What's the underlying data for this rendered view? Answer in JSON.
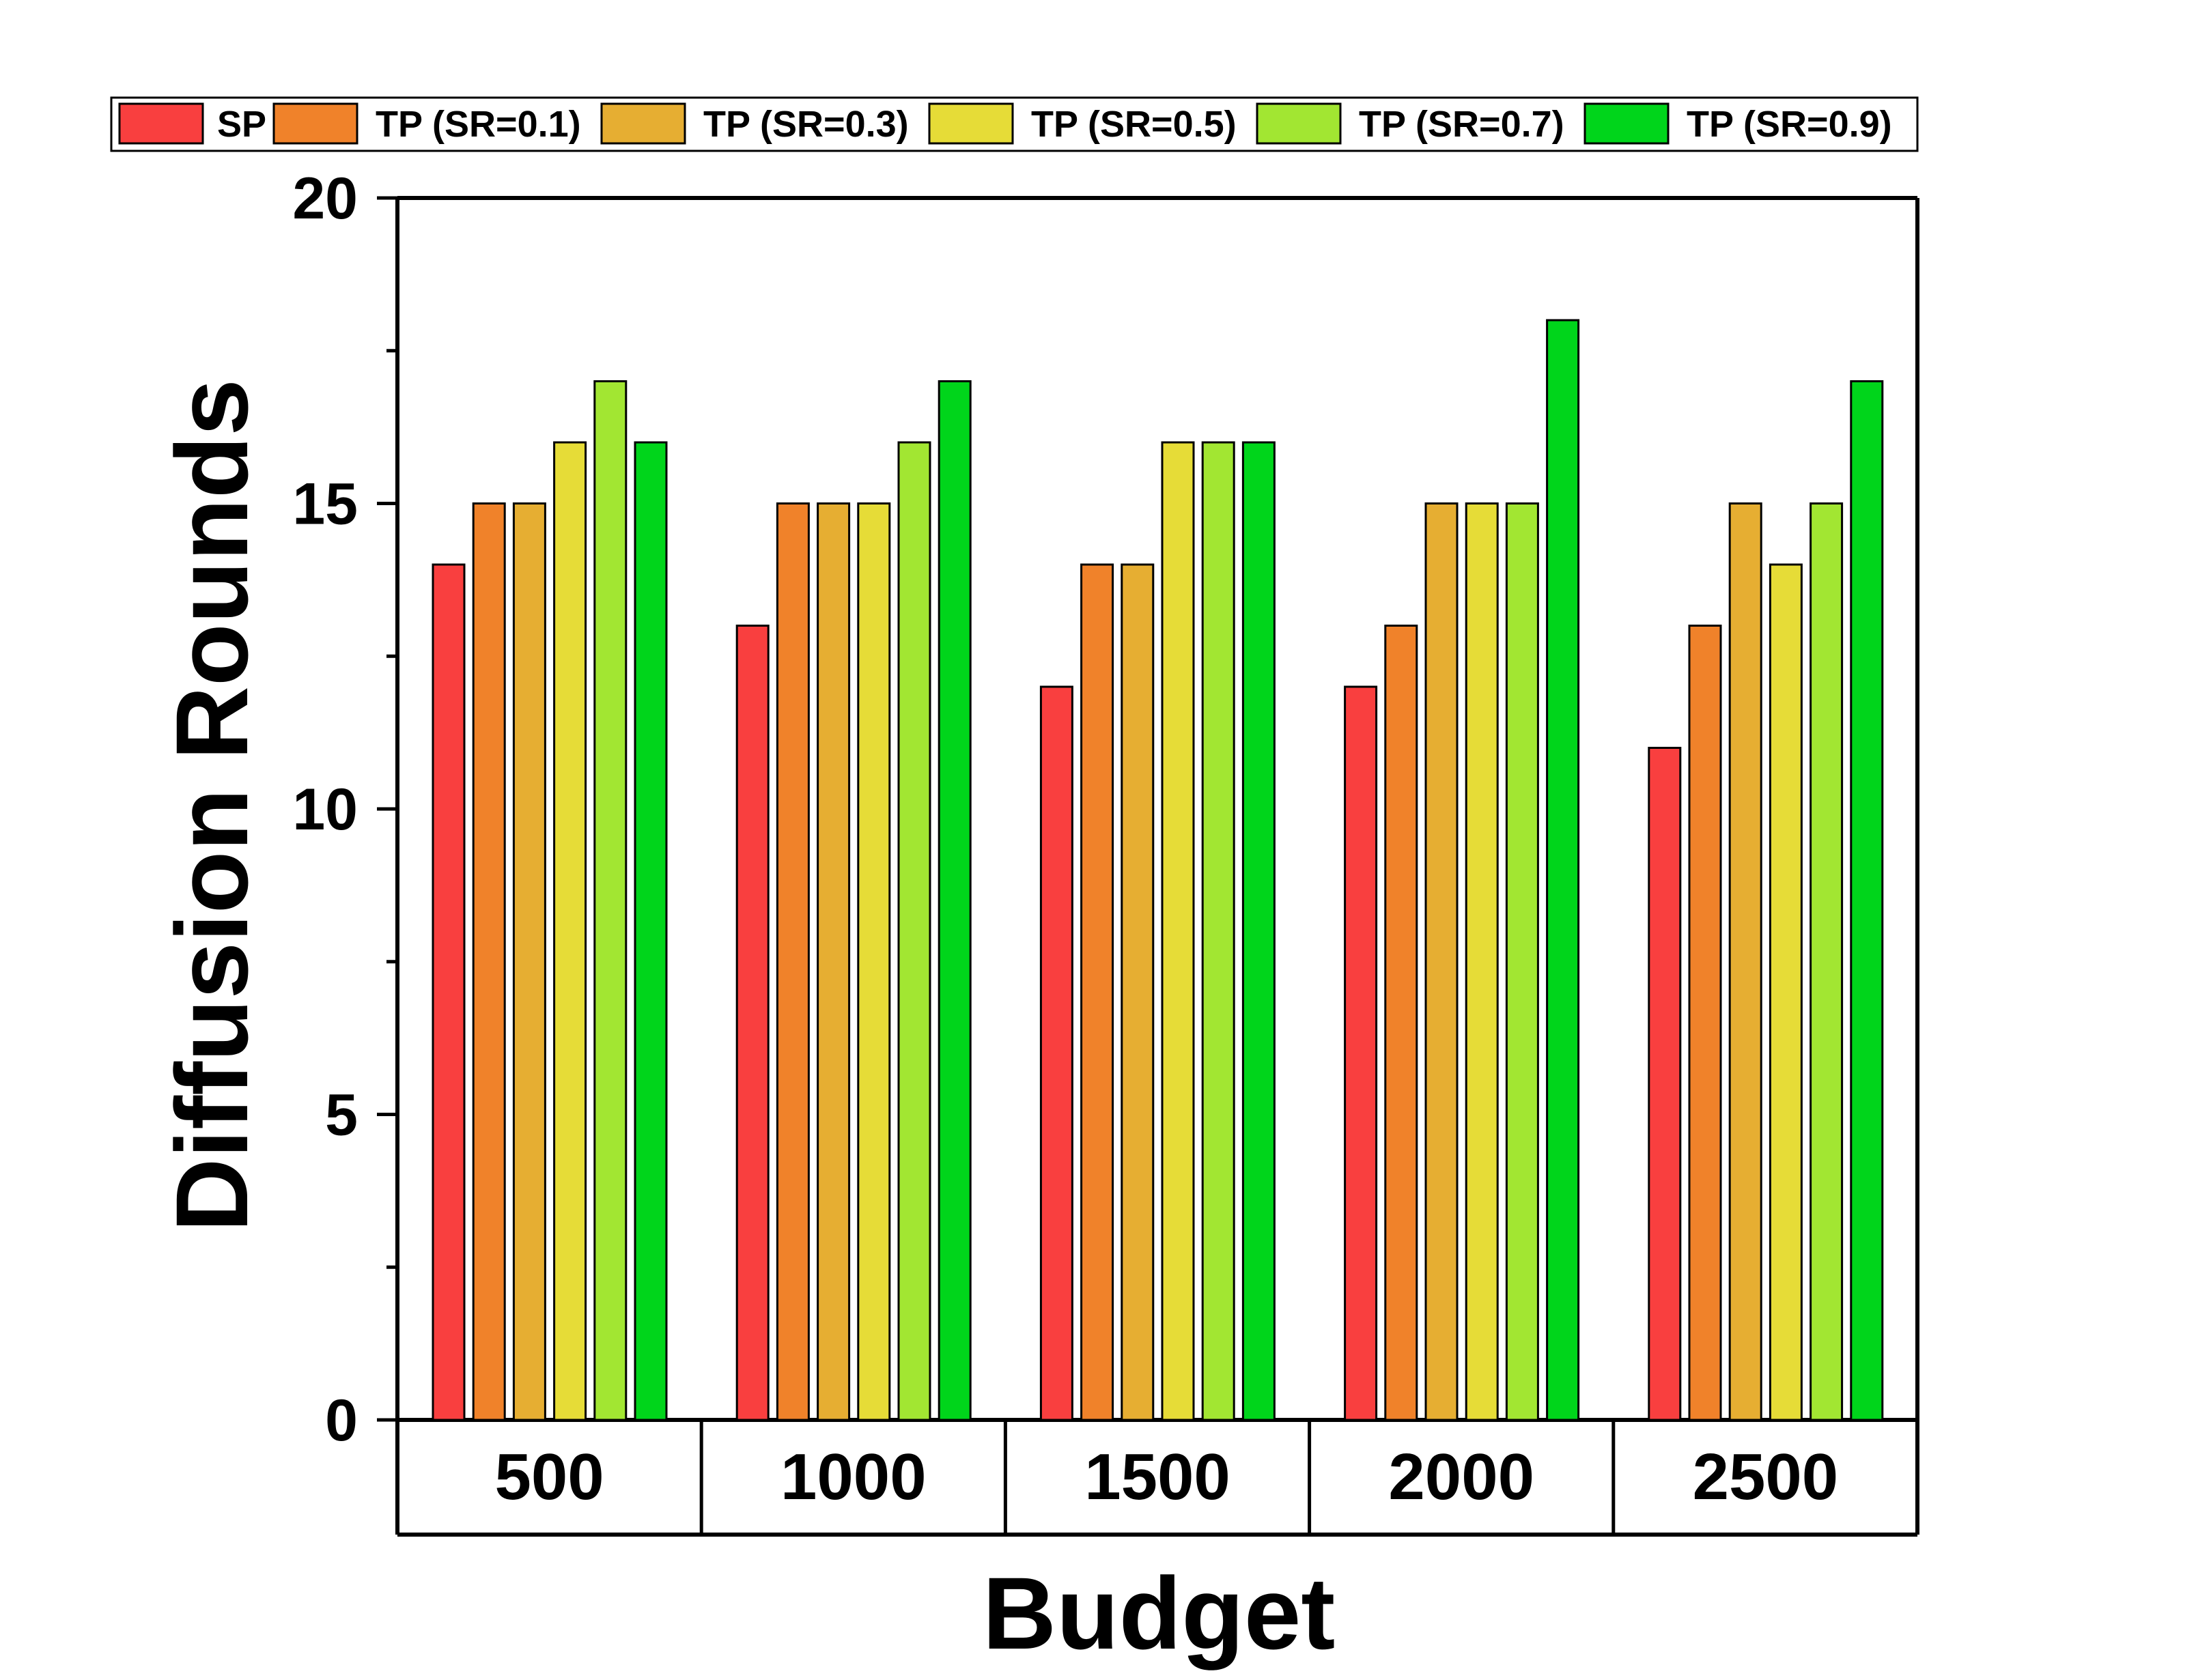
{
  "chart_data": {
    "type": "bar",
    "title": "",
    "xlabel": "Budget",
    "ylabel": "Diffusion Rounds",
    "ylim": [
      0,
      20
    ],
    "yticks": [
      "0",
      "5",
      "10",
      "15",
      "20"
    ],
    "categories": [
      "500",
      "1000",
      "1500",
      "2000",
      "2500"
    ],
    "series": [
      {
        "name": "SP",
        "color": "#f93f3f",
        "values": [
          14,
          13,
          12,
          12,
          11
        ]
      },
      {
        "name": "TP (SR=0.1)",
        "color": "#f0822a",
        "values": [
          15,
          15,
          14,
          13,
          13
        ]
      },
      {
        "name": "TP (SR=0.3)",
        "color": "#e6ae32",
        "values": [
          15,
          15,
          14,
          15,
          15
        ]
      },
      {
        "name": "TP (SR=0.5)",
        "color": "#e6dc37",
        "values": [
          16,
          15,
          16,
          15,
          14
        ]
      },
      {
        "name": "TP (SR=0.7)",
        "color": "#a2e632",
        "values": [
          17,
          16,
          16,
          15,
          15
        ]
      },
      {
        "name": "TP (SR=0.9)",
        "color": "#00d51b",
        "values": [
          16,
          17,
          16,
          18,
          17
        ]
      }
    ],
    "legend_position": "top",
    "grid": false
  }
}
